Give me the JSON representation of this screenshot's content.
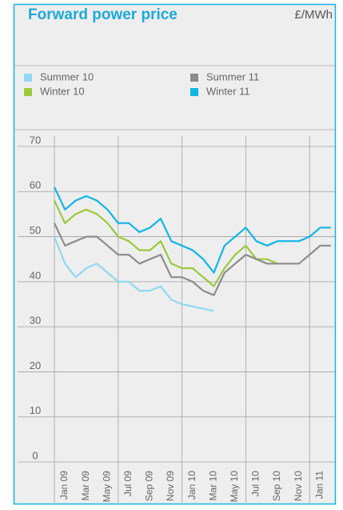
{
  "chart_data": {
    "type": "line",
    "title": "Forward power price",
    "y_label": "£/MWh",
    "categories": [
      "Jan 09",
      null,
      "Mar 09",
      null,
      "May 09",
      null,
      "Jul 09",
      null,
      "Sep 09",
      null,
      "Nov 09",
      null,
      "Jan 10",
      null,
      "Mar 10",
      null,
      "May 10",
      null,
      "Jul 10",
      null,
      "Sep 10",
      null,
      "Nov 10",
      null,
      "Jan 11",
      null,
      null
    ],
    "series": [
      {
        "name": "Summer 10",
        "color": "#8fd8f0",
        "values": [
          50,
          44,
          41,
          43,
          44,
          42,
          40,
          40,
          38,
          38,
          39,
          36,
          35,
          34.5,
          34,
          33.5,
          null,
          null,
          null,
          null,
          null,
          null,
          null,
          null,
          null,
          null,
          null
        ]
      },
      {
        "name": "Winter 10",
        "color": "#9bc93b",
        "values": [
          58,
          53,
          55,
          56,
          55,
          53,
          50,
          49,
          47,
          47,
          49,
          44,
          43,
          43,
          41,
          39,
          43,
          46,
          48,
          45,
          45,
          44,
          null,
          null,
          null,
          null,
          null
        ]
      },
      {
        "name": "Summer 11",
        "color": "#8c8c8c",
        "values": [
          53,
          48,
          49,
          50,
          50,
          48,
          46,
          46,
          44,
          45,
          46,
          41,
          41,
          40,
          38,
          37,
          42,
          44,
          46,
          45,
          44,
          44,
          44,
          44,
          46,
          48,
          48
        ]
      },
      {
        "name": "Winter 11",
        "color": "#12b5e5",
        "values": [
          61,
          56,
          58,
          59,
          58,
          56,
          53,
          53,
          51,
          52,
          54,
          49,
          48,
          47,
          45,
          42,
          48,
          50,
          52,
          49,
          48,
          49,
          49,
          49,
          50,
          52,
          52
        ]
      }
    ],
    "ylim": [
      0,
      70
    ],
    "yticks": [
      0,
      10,
      20,
      30,
      40,
      50,
      60,
      70
    ],
    "grid": true
  }
}
